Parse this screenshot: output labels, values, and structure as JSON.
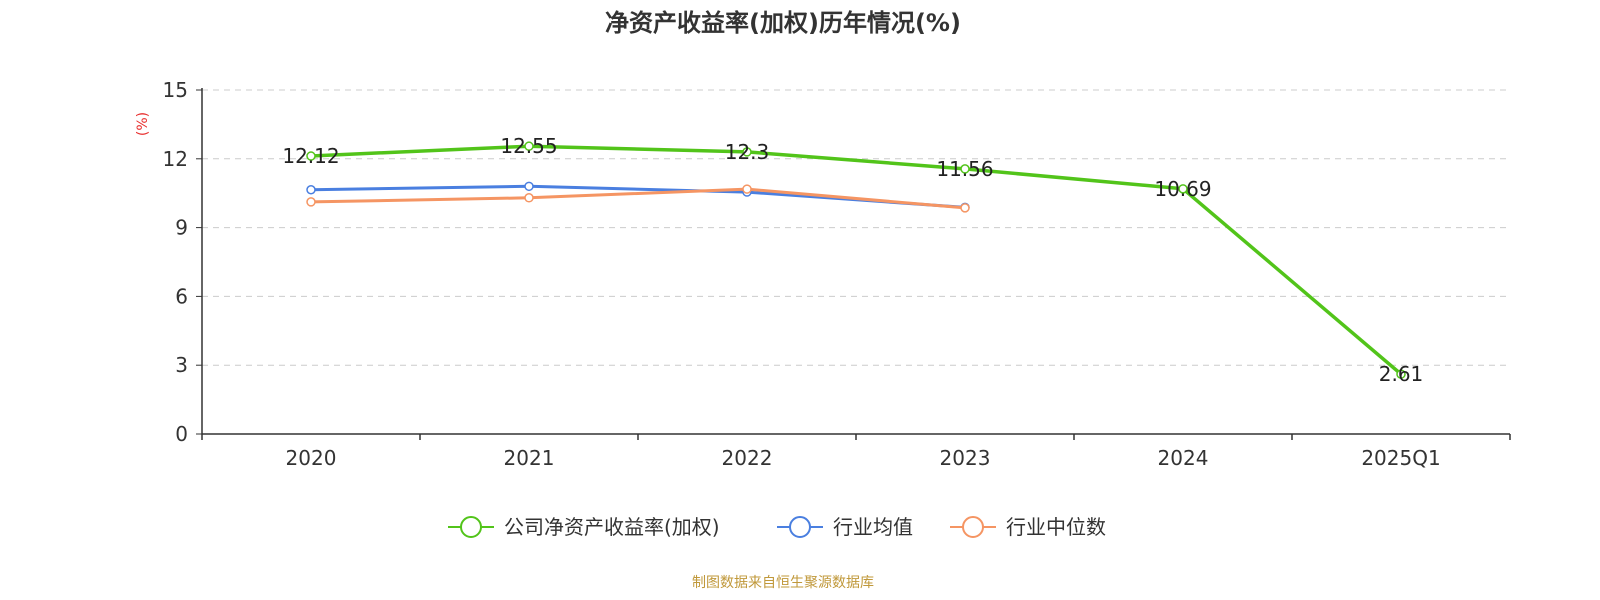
{
  "chart_data": {
    "type": "line",
    "title": "净资产收益率(加权)历年情况(%)",
    "ylabel": "(%)",
    "categories": [
      "2020",
      "2021",
      "2022",
      "2023",
      "2024",
      "2025Q1"
    ],
    "ylim": [
      0,
      15
    ],
    "yticks": [
      "0",
      "3",
      "6",
      "9",
      "12",
      "15"
    ],
    "grid": true,
    "legend_position": "bottom",
    "series": [
      {
        "name": "公司净资产收益率(加权)",
        "values": [
          12.12,
          12.55,
          12.3,
          11.56,
          10.69,
          2.61
        ],
        "labels": [
          "12.12",
          "12.55",
          "12.3",
          "11.56",
          "10.69",
          "2.61"
        ],
        "color": "#52c41a"
      },
      {
        "name": "行业均值",
        "values": [
          10.65,
          10.8,
          10.55,
          9.88,
          null,
          null
        ],
        "color": "#4a7fe0"
      },
      {
        "name": "行业中位数",
        "values": [
          10.12,
          10.3,
          10.68,
          9.86,
          null,
          null
        ],
        "color": "#f59563"
      }
    ],
    "source": "制图数据来自恒生聚源数据库"
  },
  "colors": {
    "axis": "#333333",
    "grid": "#cccccc",
    "unit": "#e8302f",
    "source": "#c0983a"
  }
}
